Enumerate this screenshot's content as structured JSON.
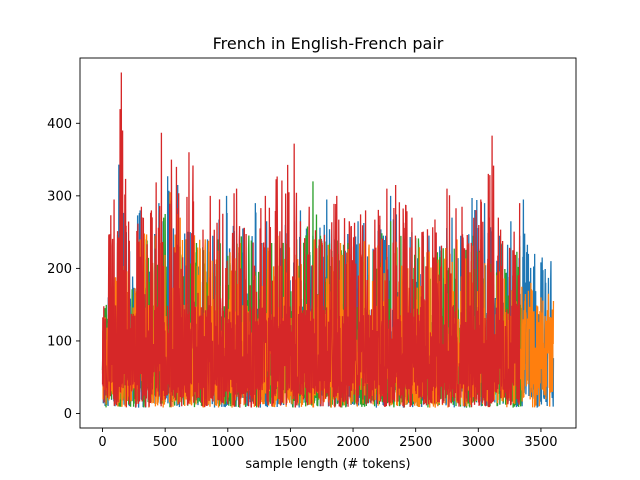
{
  "chart_data": {
    "type": "line",
    "title": "French in English-French pair",
    "xlabel": "sample length (# tokens)",
    "ylabel": "",
    "xlim": [
      -180,
      3780
    ],
    "ylim": [
      -20,
      490
    ],
    "xticks": [
      0,
      500,
      1000,
      1500,
      2000,
      2500,
      3000,
      3500
    ],
    "yticks": [
      0,
      100,
      200,
      300,
      400
    ],
    "grid": false,
    "legend": "none",
    "series": [
      {
        "color": "#1f77b4",
        "x_range": [
          0,
          3600
        ],
        "x": [
          0,
          130,
          190,
          300,
          370,
          450,
          520,
          600,
          700,
          880,
          990,
          1120,
          1220,
          1310,
          1460,
          1530,
          1580,
          1680,
          1790,
          1850,
          2040,
          2210,
          2260,
          2300,
          2470,
          2560,
          2790,
          2860,
          2950,
          3050,
          3170,
          3260,
          3330,
          3360,
          3400,
          3450,
          3510,
          3580
        ],
        "y": [
          60,
          343,
          250,
          280,
          190,
          290,
          327,
          315,
          250,
          245,
          300,
          255,
          290,
          265,
          260,
          265,
          280,
          245,
          295,
          240,
          265,
          260,
          245,
          300,
          250,
          245,
          270,
          245,
          297,
          290,
          245,
          265,
          245,
          295,
          220,
          220,
          215,
          210
        ]
      },
      {
        "color": "#2ca02c",
        "x_range": [
          0,
          3350
        ],
        "x": [
          0,
          350,
          500,
          620,
          750,
          920,
          1130,
          1380,
          1550,
          1680,
          1740,
          1960,
          2300,
          2560,
          2660,
          2870,
          2960,
          3180,
          3330
        ],
        "y": [
          60,
          240,
          275,
          230,
          235,
          240,
          250,
          235,
          240,
          320,
          245,
          235,
          265,
          240,
          230,
          235,
          245,
          235,
          230
        ]
      },
      {
        "color": "#ff7f0e",
        "x_range": [
          0,
          3600
        ],
        "x": [
          0,
          120,
          300,
          540,
          600,
          820,
          1100,
          1400,
          1690,
          1900,
          2230,
          2470,
          2830,
          3020,
          3330,
          3420,
          3500,
          3560,
          3600
        ],
        "y": [
          55,
          235,
          240,
          305,
          275,
          240,
          235,
          245,
          240,
          235,
          240,
          240,
          240,
          240,
          175,
          180,
          160,
          165,
          155
        ]
      },
      {
        "color": "#d62728",
        "x_range": [
          0,
          3330
        ],
        "x": [
          0,
          50,
          150,
          160,
          310,
          390,
          470,
          550,
          590,
          690,
          860,
          1070,
          1130,
          1300,
          1530,
          1580,
          1650,
          1730,
          1870,
          1970,
          2100,
          2270,
          2340,
          2470,
          2550,
          2750,
          2870,
          3020,
          3110,
          3160,
          3330
        ],
        "y": [
          40,
          245,
          470,
          390,
          285,
          280,
          387,
          350,
          340,
          360,
          300,
          310,
          255,
          300,
          372,
          265,
          285,
          240,
          300,
          265,
          280,
          310,
          315,
          270,
          250,
          310,
          285,
          295,
          383,
          270,
          290
        ]
      }
    ]
  }
}
